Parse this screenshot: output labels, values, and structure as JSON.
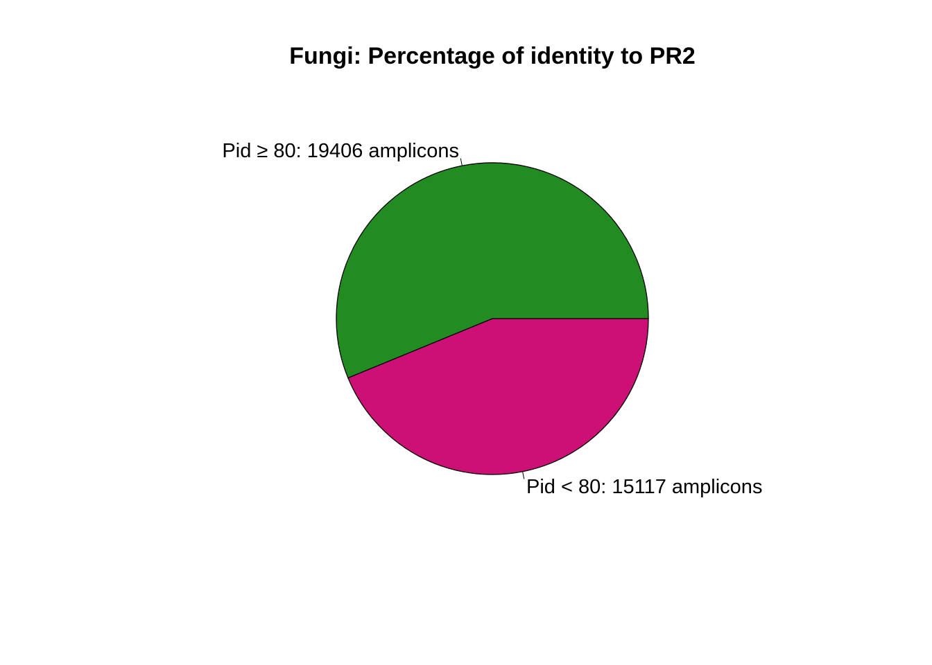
{
  "chart_data": {
    "type": "pie",
    "title": "Fungi: Percentage of identity to PR2",
    "slices": [
      {
        "label": "Pid ≥ 80: 19406 amplicons",
        "value": 19406,
        "color": "#228b22"
      },
      {
        "label": "Pid < 80: 15117 amplicons",
        "value": 15117,
        "color": "#cd1076"
      }
    ],
    "start_angle_deg": 0,
    "direction": "counterclockwise"
  }
}
